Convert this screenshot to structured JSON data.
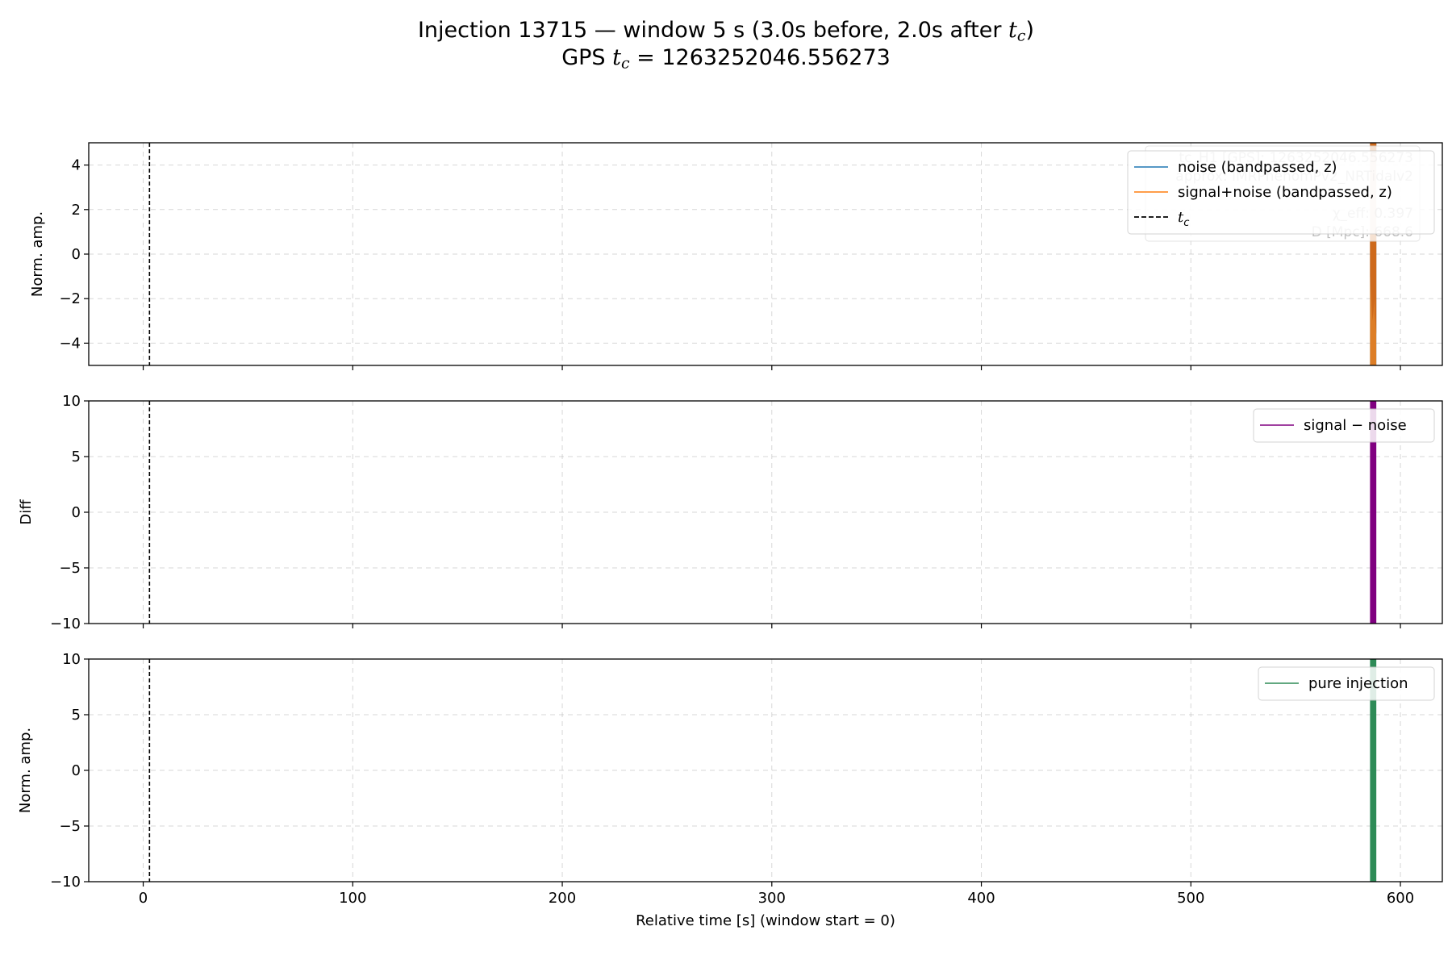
{
  "title_line1_prefix": "Injection 13715 — window 5 s (3.0s before, 2.0s after ",
  "title_line1_suffix": ")",
  "title_line2_prefix": "GPS ",
  "title_line2_suffix": " = 1263252046.556273",
  "tc_symbol": "t",
  "tc_subscript": "c",
  "colors": {
    "noise": "#1f77b4",
    "signal_noise": "#ff7f0e",
    "diff": "#800080",
    "injection": "#2e8b57",
    "tc_line": "#000000",
    "grid": "#b0b0b0"
  },
  "chart_data": [
    {
      "type": "line",
      "panel": "top",
      "ylabel": "Norm. amp.",
      "xlim": [
        -26,
        620
      ],
      "ylim": [
        -5,
        5
      ],
      "yticks": [
        4,
        2,
        0,
        -2,
        -4
      ],
      "ytick_labels": [
        "4",
        "2",
        "0",
        "−2",
        "−4"
      ],
      "xticks": [
        0,
        100,
        200,
        300,
        400,
        500,
        600
      ],
      "show_xtick_labels": false,
      "grid": true,
      "legend_position": "top-right",
      "tc_x": 3.0,
      "series": [
        {
          "name": "noise (bandpassed, z)",
          "color_key": "noise",
          "x_range": [
            585.5,
            588.5
          ]
        },
        {
          "name": "signal+noise (bandpassed, z)",
          "color_key": "signal_noise",
          "x_range": [
            585.5,
            588.5
          ]
        },
        {
          "name": "t_c",
          "style": "dashed",
          "x": 3.0
        }
      ],
      "annotation_lines": [
        "tc_H1 [GPS]: 1263252046.556273",
        "approx: IMRPhenomPv2_NRTidalv2",
        "",
        "χ_eff: 0.397",
        "D [Mpc]: 668.6"
      ]
    },
    {
      "type": "line",
      "panel": "middle",
      "ylabel": "Diff",
      "xlim": [
        -26,
        620
      ],
      "ylim": [
        -10,
        10
      ],
      "yticks": [
        10,
        5,
        0,
        -5,
        -10
      ],
      "ytick_labels": [
        "10",
        "5",
        "0",
        "−5",
        "−10"
      ],
      "xticks": [
        0,
        100,
        200,
        300,
        400,
        500,
        600
      ],
      "show_xtick_labels": false,
      "grid": true,
      "legend_position": "top-right",
      "tc_x": 3.0,
      "series": [
        {
          "name": "signal − noise",
          "color_key": "diff",
          "x_range": [
            585.5,
            588.5
          ]
        }
      ]
    },
    {
      "type": "line",
      "panel": "bottom",
      "ylabel": "Norm. amp.",
      "xlabel": "Relative time [s] (window start = 0)",
      "xlim": [
        -26,
        620
      ],
      "ylim": [
        -10,
        10
      ],
      "yticks": [
        10,
        5,
        0,
        -5,
        -10
      ],
      "ytick_labels": [
        "10",
        "5",
        "0",
        "−5",
        "−10"
      ],
      "xticks": [
        0,
        100,
        200,
        300,
        400,
        500,
        600
      ],
      "xtick_labels": [
        "0",
        "100",
        "200",
        "300",
        "400",
        "500",
        "600"
      ],
      "show_xtick_labels": true,
      "grid": true,
      "legend_position": "top-right",
      "tc_x": 3.0,
      "series": [
        {
          "name": "pure injection",
          "color_key": "injection",
          "x_range": [
            585.5,
            588.5
          ]
        }
      ]
    }
  ]
}
